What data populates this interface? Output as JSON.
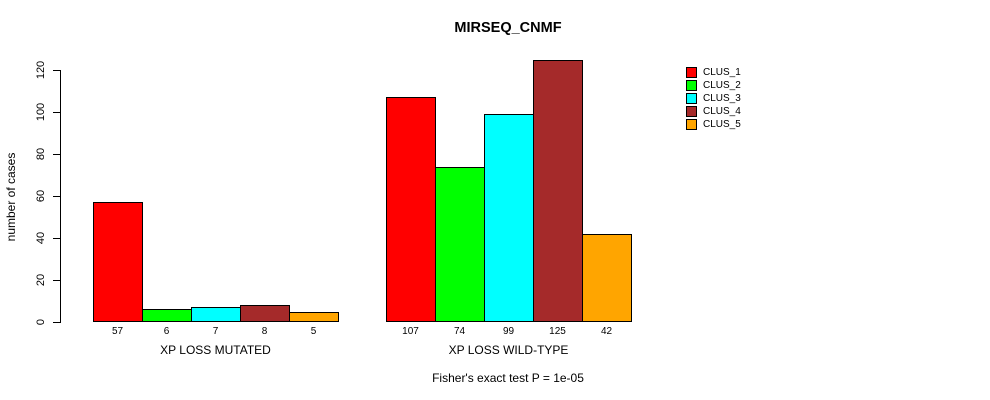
{
  "title": "MIRSEQ_CNMF",
  "footer": "Fisher's exact test P = 1e-05",
  "chart_data": {
    "type": "bar",
    "title": "MIRSEQ_CNMF",
    "ylabel": "number of cases",
    "xlabel": "",
    "yticks": [
      0,
      20,
      40,
      60,
      80,
      100,
      120
    ],
    "ylim": [
      0,
      130
    ],
    "grid": false,
    "legend_position": "top-right",
    "legend": [
      {
        "label": "CLUS_1",
        "color": "#FF0000"
      },
      {
        "label": "CLUS_2",
        "color": "#00FF00"
      },
      {
        "label": "CLUS_3",
        "color": "#00FFFF"
      },
      {
        "label": "CLUS_4",
        "color": "#A52A2A"
      },
      {
        "label": "CLUS_5",
        "color": "#FFA500"
      }
    ],
    "groups": [
      {
        "label": "XP LOSS MUTATED",
        "values": [
          57,
          6,
          7,
          8,
          5
        ]
      },
      {
        "label": "XP LOSS WILD-TYPE",
        "values": [
          107,
          74,
          99,
          125,
          42
        ]
      }
    ],
    "annotation": "Fisher's exact test P = 1e-05"
  }
}
